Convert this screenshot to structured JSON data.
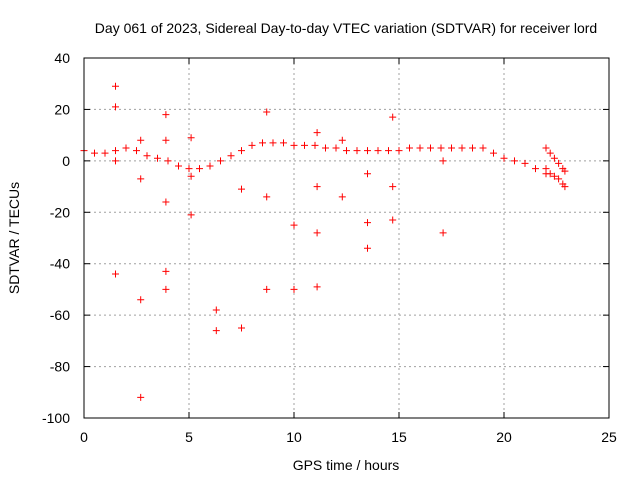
{
  "chart_data": {
    "type": "scatter",
    "title": "Day 061 of 2023, Sidereal Day-to-day VTEC variation (SDTVAR) for receiver lord",
    "xlabel": "GPS time / hours",
    "ylabel": "SDTVAR / TECUs",
    "xlim": [
      0,
      25
    ],
    "ylim": [
      -100,
      40
    ],
    "xticks": [
      0,
      5,
      10,
      15,
      20,
      25
    ],
    "yticks": [
      -100,
      -80,
      -60,
      -40,
      -20,
      0,
      20,
      40
    ],
    "xtick_labels": [
      "0",
      "5",
      "10",
      "15",
      "20",
      "25"
    ],
    "ytick_labels": [
      "-100",
      "-80",
      "-60",
      "-40",
      "-20",
      "0",
      "20",
      "40"
    ],
    "grid": true,
    "marker": "+",
    "color": "#ff0000",
    "series": [
      {
        "name": "SDTVAR",
        "trend_points": {
          "x": [
            0,
            0.5,
            1,
            1.5,
            2,
            2.5,
            3,
            3.5,
            4,
            4.5,
            5,
            5.5,
            6,
            6.5,
            7,
            7.5,
            8,
            8.5,
            9,
            9.5,
            10,
            10.5,
            11,
            11.5,
            12,
            12.5,
            13,
            13.5,
            14,
            14.5,
            15,
            15.5,
            16,
            16.5,
            17,
            17.5,
            18,
            18.5,
            19,
            19.5,
            20,
            20.5,
            21,
            21.5,
            22
          ],
          "y": [
            4,
            3,
            3,
            4,
            5,
            4,
            2,
            1,
            0,
            -2,
            -3,
            -3,
            -2,
            0,
            2,
            4,
            6,
            7,
            7,
            7,
            6,
            6,
            6,
            5,
            5,
            4,
            4,
            4,
            4,
            4,
            4,
            5,
            5,
            5,
            5,
            5,
            5,
            5,
            5,
            3,
            1,
            0,
            -1,
            -3,
            -5
          ]
        },
        "tail_points": {
          "x": [
            22.0,
            22.2,
            22.4,
            22.6,
            22.8,
            22.9,
            22.0,
            22.2,
            22.4,
            22.6,
            22.8,
            22.9
          ],
          "y": [
            5,
            3,
            1,
            -1,
            -3,
            -4,
            -3,
            -5,
            -6,
            -7,
            -9,
            -10
          ]
        },
        "outliers": {
          "x": [
            1.5,
            1.5,
            1.5,
            1.5,
            2.7,
            2.7,
            2.7,
            2.7,
            3.9,
            3.9,
            3.9,
            3.9,
            3.9,
            5.1,
            5.1,
            5.1,
            6.3,
            6.3,
            7.5,
            7.5,
            8.7,
            8.7,
            8.7,
            10.0,
            10.0,
            11.1,
            11.1,
            11.1,
            11.1,
            12.3,
            12.3,
            13.5,
            13.5,
            13.5,
            14.7,
            14.7,
            14.7,
            17.1,
            17.1
          ],
          "y": [
            29,
            21,
            -44,
            0,
            8,
            -7,
            -54,
            -92,
            18,
            8,
            -16,
            -43,
            -50,
            9,
            -21,
            -6,
            -58,
            -66,
            -11,
            -65,
            19,
            -14,
            -50,
            -25,
            -50,
            11,
            -10,
            -28,
            -49,
            8,
            -14,
            -24,
            -34,
            -5,
            17,
            -10,
            -23,
            -28,
            0
          ]
        }
      }
    ]
  }
}
